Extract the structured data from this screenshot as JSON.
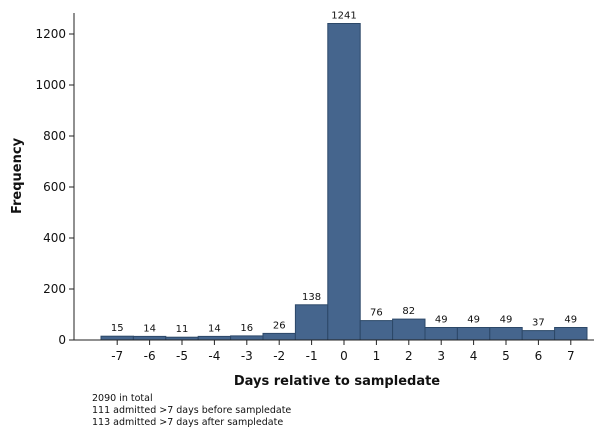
{
  "chart_data": {
    "type": "bar",
    "xlabel": "Days relative to sampledate",
    "ylabel": "Frequency",
    "categories": [
      "-7",
      "-6",
      "-5",
      "-4",
      "-3",
      "-2",
      "-1",
      "0",
      "1",
      "2",
      "3",
      "4",
      "5",
      "6",
      "7"
    ],
    "values": [
      15,
      14,
      11,
      14,
      16,
      26,
      138,
      1241,
      76,
      82,
      49,
      49,
      49,
      37,
      49
    ],
    "data_labels": [
      "15",
      "14",
      "11",
      "14",
      "16",
      "26",
      "138",
      "1241",
      "76",
      "82",
      "49",
      "49",
      "49",
      "37",
      "49"
    ],
    "yticks": [
      0,
      200,
      400,
      600,
      800,
      1000,
      1200
    ],
    "ylim": [
      0,
      1310
    ],
    "grid": false,
    "legend": "none",
    "bar_color": "#45658d",
    "bar_edge_color": "#2c4868"
  },
  "notes": [
    "2090 in total",
    "111 admitted >7 days before sampledate",
    "113 admitted >7 days after sampledate"
  ]
}
